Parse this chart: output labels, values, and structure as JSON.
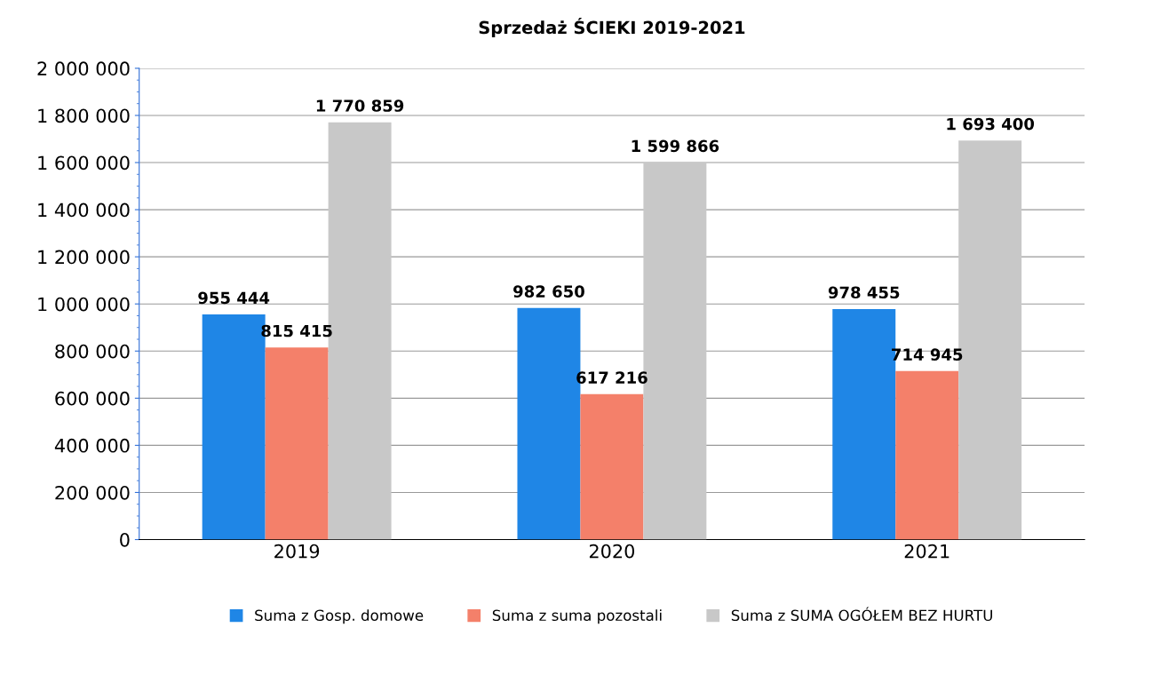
{
  "chart_data": {
    "type": "bar",
    "title": "Sprzedaż ŚCIEKI 2019-2021",
    "categories": [
      "2019",
      "2020",
      "2021"
    ],
    "series": [
      {
        "name": "Suma z Gosp. domowe",
        "color": "#1f86e6",
        "values": [
          955444,
          982650,
          978455
        ],
        "value_labels": [
          "955 444",
          "982 650",
          "978 455"
        ]
      },
      {
        "name": "Suma z suma pozostali",
        "color": "#f4806a",
        "values": [
          815415,
          617216,
          714945
        ],
        "value_labels": [
          "815 415",
          "617 216",
          "714 945"
        ]
      },
      {
        "name": "Suma z SUMA OGÓŁEM BEZ HURTU",
        "color": "#c8c8c8",
        "values": [
          1770859,
          1599866,
          1693400
        ],
        "value_labels": [
          "1 770 859",
          "1 599 866",
          "1 693 400"
        ]
      }
    ],
    "ylim": [
      0,
      2000000
    ],
    "yticks": [
      0,
      {
        "value": 200000,
        "label": "200 000"
      },
      {
        "value": 400000,
        "label": "400 000"
      },
      {
        "value": 600000,
        "label": "600 000"
      },
      {
        "value": 800000,
        "label": "800 000"
      },
      {
        "value": 1000000,
        "label": "1 000 000"
      },
      {
        "value": 1200000,
        "label": "1 200 000"
      },
      {
        "value": 1400000,
        "label": "1 400 000"
      },
      {
        "value": 1600000,
        "label": "1 600 000"
      },
      {
        "value": 1800000,
        "label": "1 800 000"
      },
      {
        "value": 2000000,
        "label": "2 000 000"
      }
    ],
    "grid": "y",
    "legend": "bottom"
  }
}
